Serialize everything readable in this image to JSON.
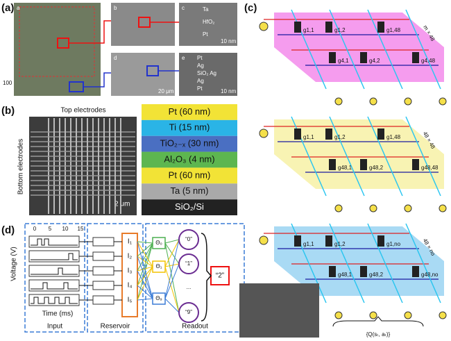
{
  "panel_labels": [
    "(a)",
    "(b)",
    "(c)",
    "(d)"
  ],
  "a": {
    "subpanels": [
      "a",
      "b",
      "c",
      "d",
      "e"
    ],
    "scale_bars": [
      "100",
      "10 nm",
      "20 μm",
      "10 nm"
    ],
    "layers_c": [
      "Ta",
      "HfO₂",
      "Pt"
    ],
    "layers_e": [
      "Pt",
      "Ag",
      "SiO₂ Ag",
      "Ag",
      "Pt"
    ]
  },
  "b": {
    "top_label": "Top electrodes",
    "side_label": "Bottom electrodes",
    "scale": "2 μm",
    "stack": [
      {
        "label": "Pt (60 nm)",
        "color": "#f2e336"
      },
      {
        "label": "Ti (15 nm)",
        "color": "#2ab4e6"
      },
      {
        "label": "TiO₂₋ₓ (30 nm)",
        "color": "#4a6fc2"
      },
      {
        "label": "Al₂O₃ (4 nm)",
        "color": "#5db650"
      },
      {
        "label": "Pt (60 nm)",
        "color": "#f2e336"
      },
      {
        "label": "Ta (5 nm)",
        "color": "#a9a9a9"
      },
      {
        "label": "SiO₂/Si",
        "color": "#222222"
      }
    ]
  },
  "c": {
    "planes": [
      {
        "size": "m × 48",
        "color": "#f27be8",
        "cells": [
          "g1,1",
          "g1,2",
          "g1,48",
          "g4,1",
          "g4,2",
          "g4,48"
        ]
      },
      {
        "size": "48 × 48",
        "color": "#f5ef9a",
        "cells": [
          "g1,1",
          "g1,2",
          "g1,48",
          "g48,1",
          "g48,2",
          "g48,48"
        ]
      },
      {
        "size": "48 × no",
        "color": "#8ccdf0",
        "cells": [
          "g1,1",
          "g1,2",
          "g1,no",
          "g48,1",
          "g48,2",
          "g48,no"
        ]
      }
    ],
    "output": "{Q(sₜ, aₜ)}"
  },
  "d": {
    "ylabel": "Voltage (V)",
    "xlabel": "Time (ms)",
    "sections": [
      "Input",
      "Reservoir",
      "Readout"
    ],
    "xticks": [
      "0",
      "5",
      "10",
      "15"
    ],
    "nodes": [
      "I₁",
      "I₂",
      "I₃",
      "I₄",
      "I₅"
    ],
    "thetas": [
      "Θ₀",
      "Θ₁",
      "Θ₉"
    ],
    "outputs": [
      "“0”",
      "“1”",
      "...",
      "“9”"
    ],
    "result": "“2”"
  }
}
